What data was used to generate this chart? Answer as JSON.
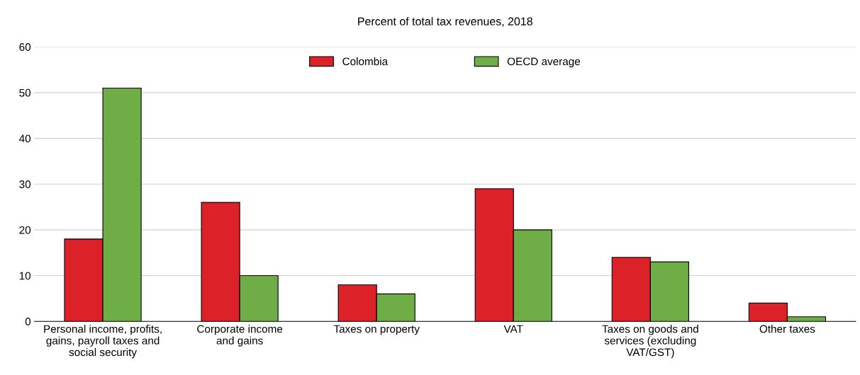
{
  "chart_data": {
    "type": "bar",
    "title": "Percent of total tax revenues, 2018",
    "categories": [
      "Personal income, profits,\ngains, payroll taxes and\nsocial security",
      "Corporate income\nand gains",
      "Taxes on property",
      "VAT",
      "Taxes on goods and\nservices (excluding\nVAT/GST)",
      "Other taxes"
    ],
    "series": [
      {
        "name": "Colombia",
        "color": "#dc2128",
        "values": [
          18,
          26,
          8,
          29,
          14,
          4
        ]
      },
      {
        "name": "OECD average",
        "color": "#6fad47",
        "values": [
          51,
          10,
          6,
          20,
          13,
          1
        ]
      }
    ],
    "ylim": [
      0,
      60
    ],
    "yticks": [
      0,
      10,
      20,
      30,
      40,
      50,
      60
    ],
    "grid": "y",
    "legend": "top"
  }
}
